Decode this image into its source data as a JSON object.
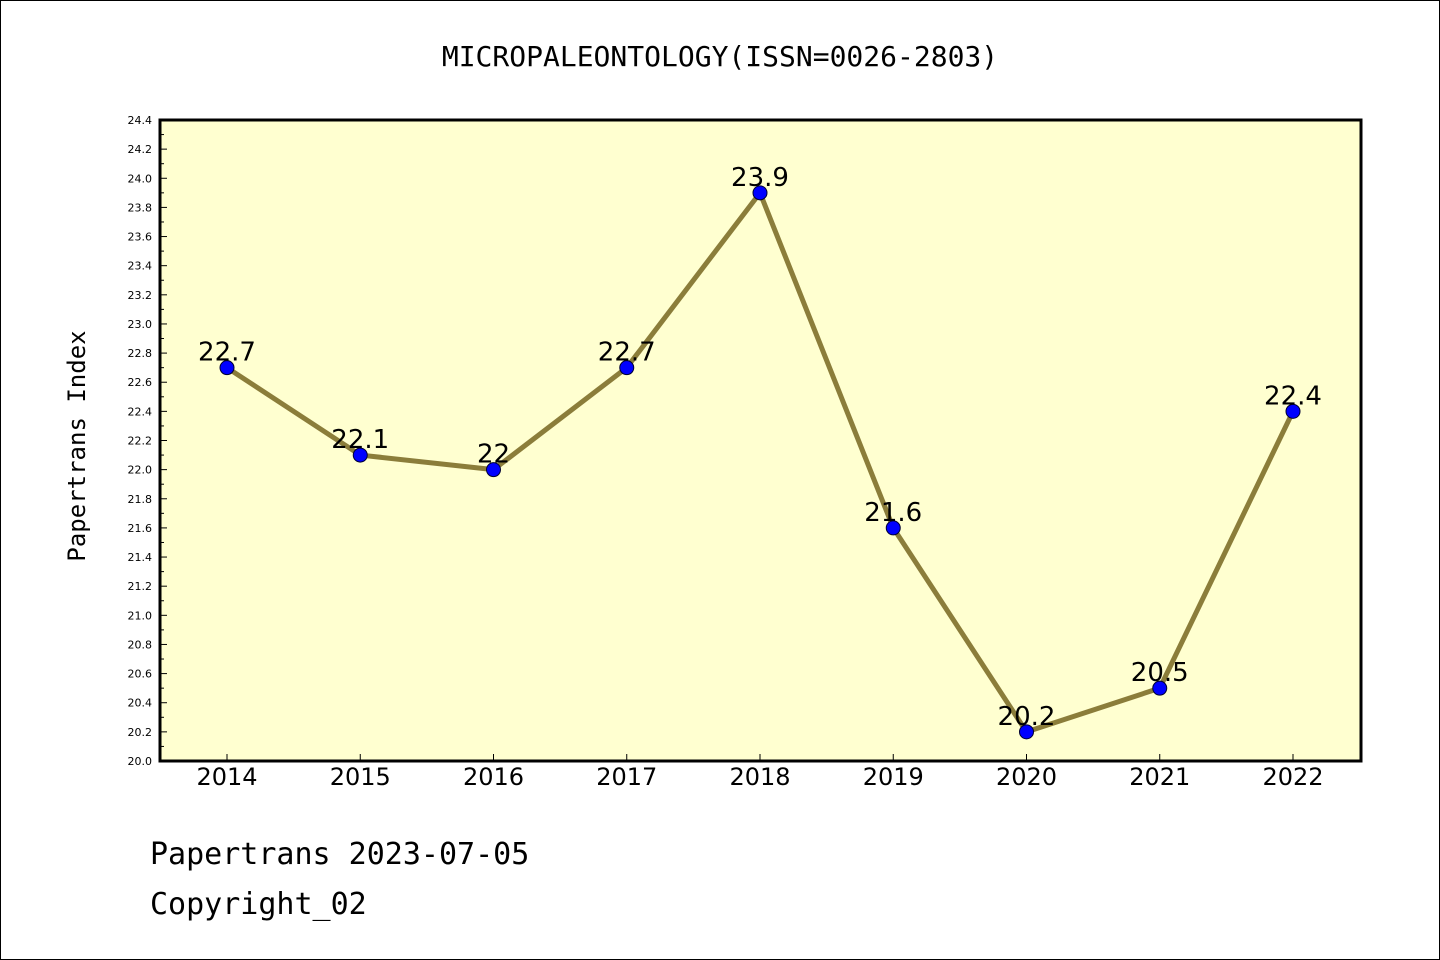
{
  "chart_data": {
    "type": "line",
    "title": "MICROPALEONTOLOGY(ISSN=0026-2803)",
    "xlabel": "",
    "ylabel": "Papertrans Index",
    "categories": [
      "2014",
      "2015",
      "2016",
      "2017",
      "2018",
      "2019",
      "2020",
      "2021",
      "2022"
    ],
    "series": [
      {
        "values": [
          22.7,
          22.1,
          22.0,
          22.7,
          23.9,
          21.6,
          20.2,
          20.5,
          22.4
        ],
        "labels": [
          "22.7",
          "22.1",
          "22",
          "22.7",
          "23.9",
          "21.6",
          "20.2",
          "20.5",
          "22.4"
        ]
      }
    ],
    "ylim": [
      20.0,
      24.4
    ],
    "yticks": [
      "20.0",
      "20.2",
      "20.4",
      "20.6",
      "20.8",
      "21.0",
      "21.2",
      "21.4",
      "21.6",
      "21.8",
      "22.0",
      "22.2",
      "22.4",
      "22.6",
      "22.8",
      "23.0",
      "23.2",
      "23.4",
      "23.6",
      "23.8",
      "24.0",
      "24.2",
      "24.4"
    ],
    "grid": false,
    "colors": {
      "plot_background": "#ffffd0",
      "line": "#8b7d3a",
      "marker": "#0000ff"
    }
  },
  "footer": {
    "line1": "Papertrans 2023-07-05",
    "line2": "Copyright_02"
  }
}
